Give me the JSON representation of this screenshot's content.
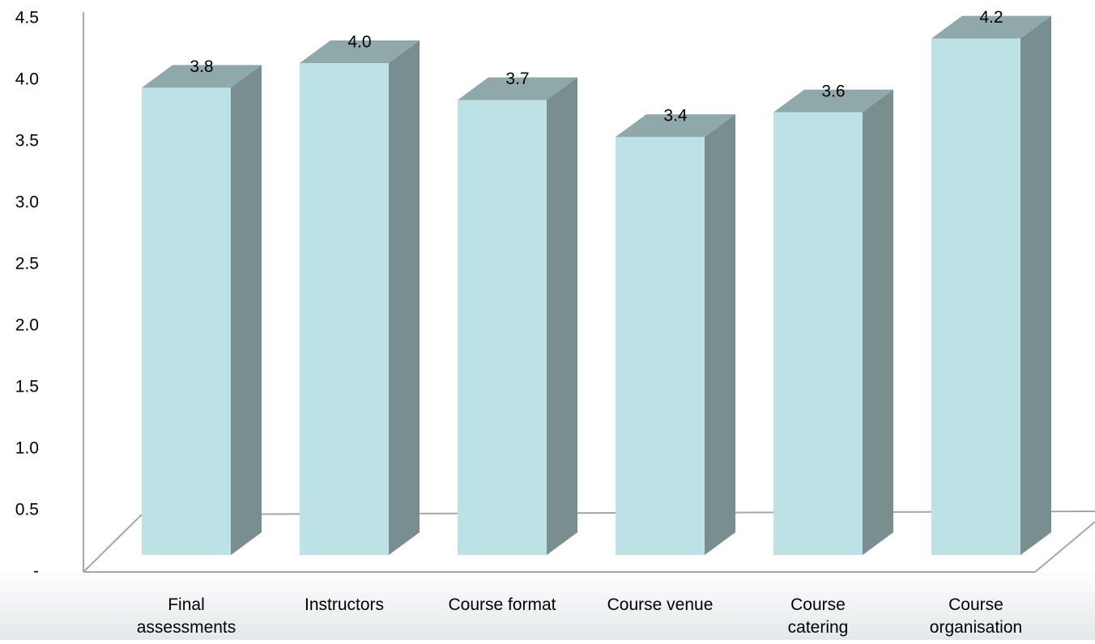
{
  "chart_data": {
    "type": "bar3d",
    "categories": [
      [
        "Final",
        "assessments"
      ],
      [
        "Instructors"
      ],
      [
        "Course format"
      ],
      [
        "Course venue"
      ],
      [
        "Course",
        "catering"
      ],
      [
        "Course",
        "organisation"
      ]
    ],
    "values": [
      3.8,
      4.0,
      3.7,
      3.4,
      3.6,
      4.2
    ],
    "value_labels": [
      "3.8",
      "4.0",
      "3.7",
      "3.4",
      "3.6",
      "4.2"
    ],
    "colors": {
      "front": "#bde2e5",
      "top": "#8fa9ab",
      "side": "#788e8f"
    },
    "ylim": [
      0,
      4.5
    ],
    "yticks": [
      {
        "value": 0,
        "label": "-"
      },
      0.5,
      {
        "value": 1,
        "label": "1.0"
      },
      1.5,
      {
        "value": 2,
        "label": "2.0"
      },
      2.5,
      {
        "value": 3,
        "label": "3.0"
      },
      3.5,
      {
        "value": 4,
        "label": "4.0"
      },
      4.5
    ]
  }
}
